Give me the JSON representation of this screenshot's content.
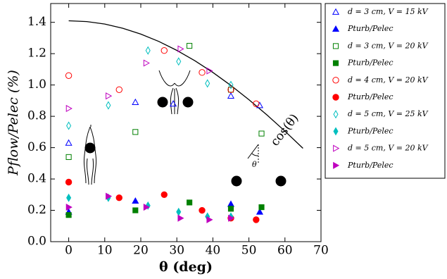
{
  "chart_data": {
    "type": "scatter",
    "xlabel": "θ (deg)",
    "ylabel": "Pflow/Pelec (%)",
    "xlim": [
      -5,
      70
    ],
    "ylim": [
      0,
      1.52
    ],
    "xticks": [
      0,
      10,
      20,
      30,
      40,
      50,
      60,
      70
    ],
    "yticks": [
      {
        "value": 0,
        "label": "0.0"
      },
      0.2,
      0.4,
      0.6,
      0.8,
      {
        "value": 1,
        "label": "1.0"
      },
      1.2,
      1.4
    ],
    "legend": "outside-right",
    "series": [
      {
        "name": "d = 3 cm, V = 15 kV",
        "color": "#0000ff",
        "marker": "triangle-up",
        "filled": false,
        "x": [
          0,
          18.5,
          29,
          45,
          53
        ],
        "values": [
          0.63,
          0.89,
          0.88,
          0.93,
          0.87
        ]
      },
      {
        "name": "Pturb/Pelec",
        "color": "#0000ff",
        "marker": "triangle-up",
        "filled": true,
        "x": [
          0,
          18.5,
          45,
          53
        ],
        "values": [
          0.19,
          0.26,
          0.24,
          0.19
        ]
      },
      {
        "name": "d = 3 cm, V = 20 kV",
        "color": "#008000",
        "marker": "square",
        "filled": false,
        "x": [
          0,
          18.5,
          33.5,
          45,
          53.5
        ],
        "values": [
          0.54,
          0.7,
          1.25,
          0.97,
          0.69
        ]
      },
      {
        "name": "Pturb/Pelec",
        "color": "#008000",
        "marker": "square",
        "filled": true,
        "x": [
          0,
          18.5,
          33.5,
          45,
          53.5
        ],
        "values": [
          0.17,
          0.2,
          0.25,
          0.21,
          0.22
        ]
      },
      {
        "name": "d = 4 cm, V = 20 kV",
        "color": "#ff0000",
        "marker": "circle",
        "filled": false,
        "x": [
          0,
          14,
          26.5,
          37,
          45,
          52
        ],
        "values": [
          1.06,
          0.97,
          1.22,
          1.08,
          0.97,
          0.88
        ]
      },
      {
        "name": "Pturb/Pelec",
        "color": "#ff0000",
        "marker": "circle",
        "filled": true,
        "x": [
          0,
          14,
          26.5,
          37,
          45,
          52
        ],
        "values": [
          0.38,
          0.28,
          0.3,
          0.2,
          0.15,
          0.14
        ]
      },
      {
        "name": "d = 5 cm, V = 25 kV",
        "color": "#00bfbf",
        "marker": "diamond",
        "filled": false,
        "x": [
          0,
          11,
          22,
          30.5,
          38.5,
          45
        ],
        "values": [
          0.74,
          0.87,
          1.22,
          1.15,
          1.01,
          1.0
        ]
      },
      {
        "name": "Pturb/Pelec",
        "color": "#00bfbf",
        "marker": "diamond",
        "filled": true,
        "x": [
          0,
          11,
          22,
          30.5,
          38.5,
          45
        ],
        "values": [
          0.28,
          0.28,
          0.23,
          0.19,
          0.16,
          0.16
        ]
      },
      {
        "name": "d = 5 cm, V = 20 kV",
        "color": "#bf00bf",
        "marker": "triangle-right",
        "filled": false,
        "x": [
          0,
          11,
          21.5,
          31,
          39
        ],
        "values": [
          0.85,
          0.93,
          1.14,
          1.23,
          1.09
        ]
      },
      {
        "name": "Pturb/Pelec",
        "color": "#bf00bf",
        "marker": "triangle-right",
        "filled": true,
        "x": [
          0,
          11,
          21.5,
          31,
          39,
          45
        ],
        "values": [
          0.22,
          0.29,
          0.22,
          0.15,
          0.14,
          0.15
        ]
      }
    ],
    "curve": {
      "label": "cos(θ)",
      "color": "#000000",
      "x": [
        0,
        5,
        10,
        15,
        20,
        25,
        30,
        35,
        40,
        45,
        50,
        55,
        60,
        65
      ],
      "values": [
        1.41,
        1.405,
        1.389,
        1.362,
        1.325,
        1.278,
        1.221,
        1.155,
        1.08,
        0.997,
        0.906,
        0.809,
        0.705,
        0.596
      ]
    },
    "annotations": [
      "θ"
    ]
  }
}
